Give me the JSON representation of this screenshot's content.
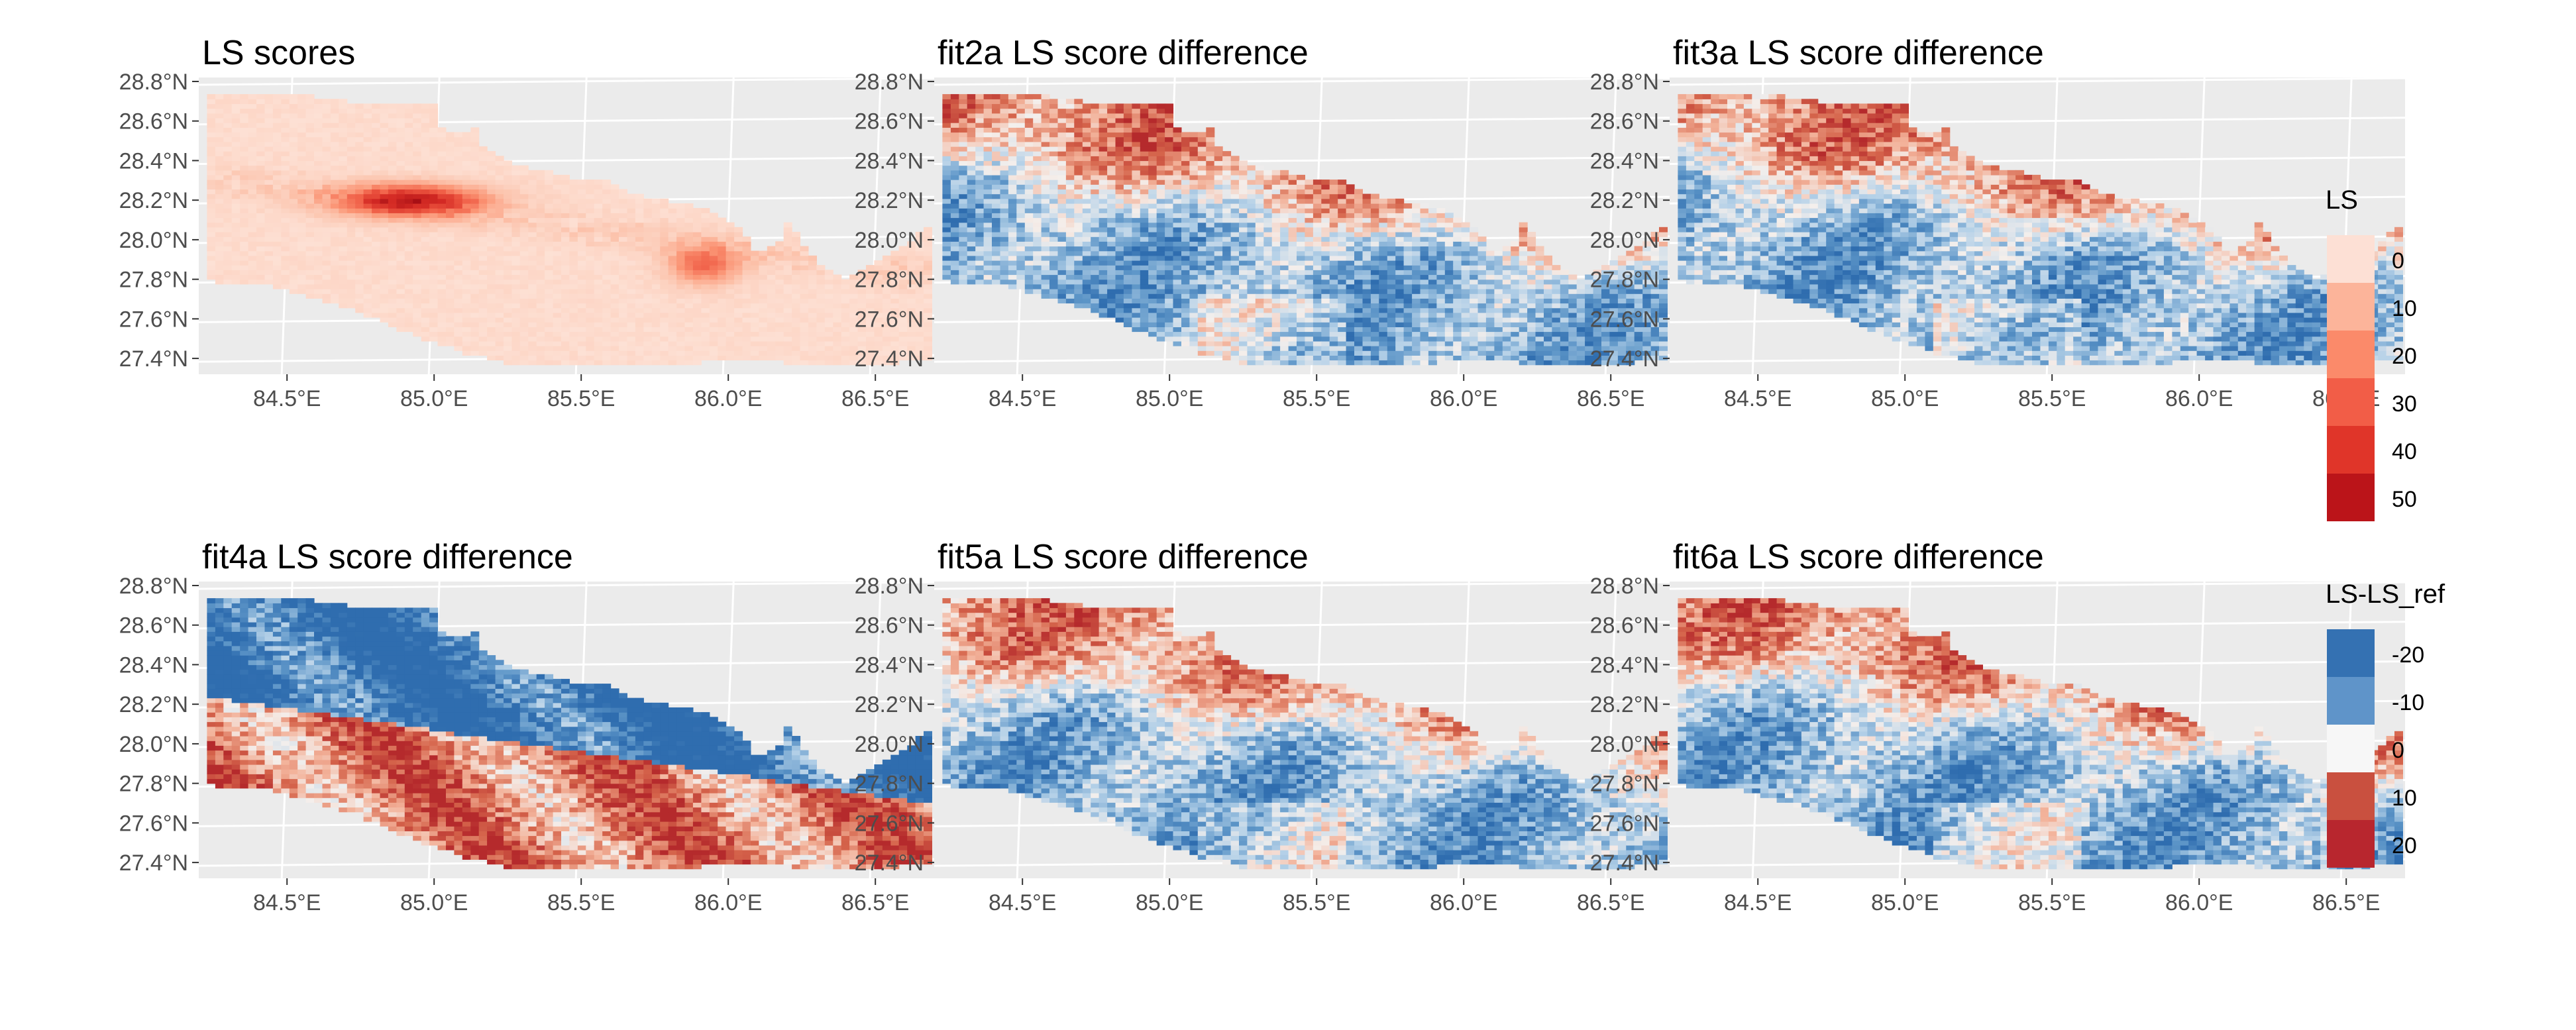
{
  "chart_data": {
    "type": "heatmap",
    "layout": "2x3 grid of maps",
    "panels": [
      {
        "title": "LS scores",
        "scale": "LS",
        "field": "ls_scores"
      },
      {
        "title": "fit2a LS score difference",
        "scale": "LS-LS_ref",
        "field": "difference"
      },
      {
        "title": "fit3a LS score difference",
        "scale": "LS-LS_ref",
        "field": "difference"
      },
      {
        "title": "fit4a LS score difference",
        "scale": "LS-LS_ref",
        "field": "difference"
      },
      {
        "title": "fit5a LS score difference",
        "scale": "LS-LS_ref",
        "field": "difference"
      },
      {
        "title": "fit6a LS score difference",
        "scale": "LS-LS_ref",
        "field": "difference"
      }
    ],
    "x_axis": {
      "range": [
        84.2,
        86.7
      ],
      "ticks": [
        84.5,
        85.0,
        85.5,
        86.0,
        86.5
      ],
      "tick_labels": [
        "84.5°E",
        "85.0°E",
        "85.5°E",
        "86.0°E",
        "86.5°E"
      ]
    },
    "y_axis": {
      "range": [
        27.32,
        28.82
      ],
      "ticks": [
        27.4,
        27.6,
        27.8,
        28.0,
        28.2,
        28.4,
        28.6,
        28.8
      ],
      "tick_labels": [
        "27.4°N",
        "27.6°N",
        "27.8°N",
        "28.0°N",
        "28.2°N",
        "28.4°N",
        "28.6°N",
        "28.8°N"
      ]
    },
    "legends": [
      {
        "title": "LS",
        "labels": [
          "0",
          "10",
          "20",
          "30",
          "40",
          "50"
        ],
        "colors": [
          "#fde0d5",
          "#fcb49a",
          "#fb8a6a",
          "#f25d47",
          "#e03529",
          "#bb1419"
        ]
      },
      {
        "title": "LS-LS_ref",
        "labels": [
          "-20",
          "-10",
          "0",
          "10",
          "20"
        ],
        "colors": [
          "#3471b2",
          "#5f94c9",
          "#f7f7f7",
          "#c9503f",
          "#b8262e"
        ]
      }
    ]
  },
  "colors": {
    "panel_background": "#ebebeb",
    "grid": "#ffffff",
    "tick_text": "#4d4d4d",
    "title_text": "#000000"
  }
}
